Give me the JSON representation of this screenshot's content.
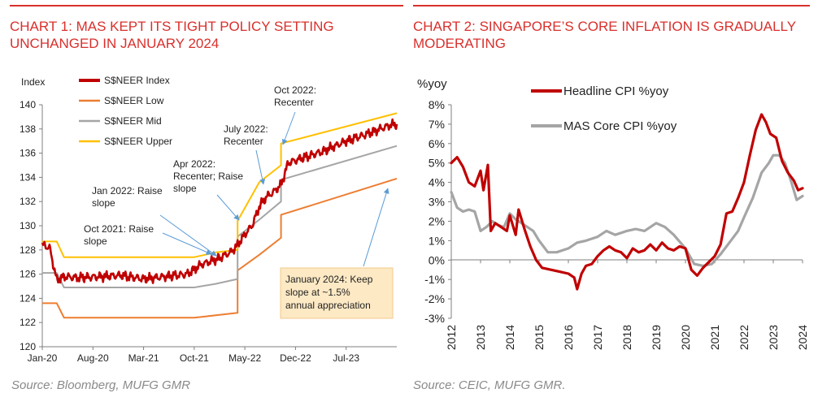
{
  "chart1": {
    "title_line1": "CHART 1: MAS KEPT ITS TIGHT POLICY SETTING",
    "title_line2": "UNCHANGED IN JANUARY 2024",
    "source": "Source: Bloomberg, MUFG GMR",
    "colors": {
      "index": "#c00000",
      "low": "#ed7d31",
      "mid": "#a5a5a5",
      "upper": "#ffc000",
      "arrow": "#5b9bd5",
      "box": "#fde9c4"
    },
    "annotations": [
      {
        "lines": [
          "Oct 2021: Raise",
          "slope"
        ]
      },
      {
        "lines": [
          "Jan 2022: Raise",
          "slope"
        ]
      },
      {
        "lines": [
          "Apr 2022:",
          "Recenter; Raise",
          "slope"
        ]
      },
      {
        "lines": [
          "July 2022:",
          "Recenter"
        ]
      },
      {
        "lines": [
          "Oct 2022:",
          "Recenter"
        ]
      }
    ],
    "box_lines": [
      "January 2024: Keep",
      "slope at ~1.5%",
      "annual appreciation"
    ]
  },
  "chart2": {
    "title_line1": "CHART 2: SINGAPORE’S CORE INFLATION IS GRADUALLY",
    "title_line2": "MODERATING",
    "source": "Source: CEIC, MUFG GMR.",
    "colors": {
      "headline": "#c00000",
      "core": "#a5a5a5"
    }
  },
  "chart_data": [
    {
      "type": "line",
      "title": "CHART 1: MAS KEPT ITS TIGHT POLICY SETTING UNCHANGED IN JANUARY 2024",
      "ylabel": "Index",
      "ylim": [
        120,
        140
      ],
      "yticks": [
        "120",
        "122",
        "124",
        "126",
        "128",
        "130",
        "132",
        "134",
        "136",
        "138",
        "140"
      ],
      "xlim": [
        "2020-01",
        "2024-02"
      ],
      "xticks": [
        "Jan-20",
        "Aug-20",
        "Mar-21",
        "Oct-21",
        "May-22",
        "Dec-22",
        "Jul-23"
      ],
      "grid": false,
      "legend_position": "top-left",
      "series": [
        {
          "name": "S$NEER Index",
          "x": [
            "2020-01",
            "2020-02",
            "2020-03",
            "2020-04",
            "2020-06",
            "2020-09",
            "2020-12",
            "2021-03",
            "2021-06",
            "2021-09",
            "2021-11",
            "2022-01",
            "2022-03",
            "2022-04",
            "2022-05",
            "2022-06",
            "2022-07",
            "2022-08",
            "2022-09",
            "2022-10",
            "2022-11",
            "2023-01",
            "2023-04",
            "2023-07",
            "2023-10",
            "2024-01",
            "2024-02"
          ],
          "values": [
            128.4,
            128.2,
            125.5,
            125.8,
            125.7,
            125.8,
            125.9,
            125.6,
            125.8,
            126.0,
            126.8,
            127.2,
            127.8,
            128.4,
            129.3,
            130.0,
            131.6,
            132.4,
            132.8,
            133.4,
            135.2,
            135.6,
            136.2,
            137.0,
            137.6,
            138.3,
            138.4
          ]
        },
        {
          "name": "S$NEER Low",
          "x": [
            "2020-01",
            "2020-03",
            "2020-04",
            "2021-10",
            "2022-01",
            "2022-04",
            "2022-04",
            "2022-07",
            "2022-10",
            "2022-10",
            "2024-02"
          ],
          "values": [
            123.6,
            123.6,
            122.4,
            122.4,
            122.6,
            122.8,
            126.3,
            127.6,
            129.0,
            130.9,
            133.9
          ]
        },
        {
          "name": "S$NEER Mid",
          "x": [
            "2020-01",
            "2020-03",
            "2020-04",
            "2021-10",
            "2022-01",
            "2022-04",
            "2022-04",
            "2022-07",
            "2022-10",
            "2022-10",
            "2024-02"
          ],
          "values": [
            126.1,
            126.1,
            124.9,
            124.9,
            125.2,
            125.6,
            129.1,
            130.5,
            132.0,
            133.8,
            136.6
          ]
        },
        {
          "name": "S$NEER Upper",
          "x": [
            "2020-01",
            "2020-03",
            "2020-04",
            "2021-10",
            "2022-01",
            "2022-04",
            "2022-04",
            "2022-07",
            "2022-10",
            "2022-10",
            "2024-02"
          ],
          "values": [
            128.7,
            128.7,
            127.4,
            127.4,
            127.8,
            128.0,
            130.4,
            133.6,
            135.0,
            136.8,
            139.3
          ]
        }
      ]
    },
    {
      "type": "line",
      "title": "CHART 2: SINGAPORE’S CORE INFLATION IS GRADUALLY MODERATING",
      "ylabel": "%yoy",
      "ylim": [
        -3,
        8
      ],
      "yticks": [
        "-3%",
        "-2%",
        "-1%",
        "0%",
        "1%",
        "2%",
        "3%",
        "4%",
        "5%",
        "6%",
        "7%",
        "8%"
      ],
      "xlim": [
        2012,
        2024
      ],
      "xticks": [
        "2012",
        "2013",
        "2014",
        "2015",
        "2016",
        "2017",
        "2018",
        "2019",
        "2020",
        "2021",
        "2022",
        "2023",
        "2024"
      ],
      "grid": false,
      "legend_position": "top-left",
      "series": [
        {
          "name": "Headline CPI %yoy",
          "x": [
            2012.0,
            2012.2,
            2012.4,
            2012.6,
            2012.8,
            2013.0,
            2013.1,
            2013.25,
            2013.35,
            2013.5,
            2013.7,
            2013.9,
            2014.0,
            2014.2,
            2014.3,
            2014.5,
            2014.7,
            2014.9,
            2015.1,
            2015.4,
            2015.7,
            2016.0,
            2016.2,
            2016.3,
            2016.45,
            2016.6,
            2016.8,
            2017.0,
            2017.2,
            2017.4,
            2017.6,
            2017.8,
            2018.0,
            2018.2,
            2018.4,
            2018.6,
            2018.8,
            2019.0,
            2019.2,
            2019.4,
            2019.6,
            2019.8,
            2020.0,
            2020.2,
            2020.4,
            2020.6,
            2020.8,
            2021.0,
            2021.2,
            2021.4,
            2021.6,
            2021.8,
            2022.0,
            2022.2,
            2022.4,
            2022.6,
            2022.75,
            2022.9,
            2023.1,
            2023.3,
            2023.5,
            2023.7,
            2023.85,
            2024.0
          ],
          "values": [
            5.0,
            5.3,
            4.8,
            4.0,
            3.8,
            4.6,
            3.6,
            4.9,
            1.5,
            1.9,
            1.7,
            1.5,
            2.3,
            1.3,
            2.6,
            1.6,
            0.7,
            0.0,
            -0.4,
            -0.5,
            -0.6,
            -0.7,
            -0.9,
            -1.5,
            -0.7,
            -0.3,
            -0.2,
            0.2,
            0.5,
            0.7,
            0.5,
            0.4,
            0.1,
            0.6,
            0.4,
            0.5,
            0.8,
            0.5,
            0.9,
            0.6,
            0.5,
            0.7,
            0.6,
            -0.5,
            -0.8,
            -0.4,
            -0.1,
            0.2,
            0.8,
            2.4,
            2.5,
            3.2,
            4.0,
            5.4,
            6.7,
            7.5,
            7.1,
            6.5,
            6.3,
            5.1,
            4.5,
            4.1,
            3.6,
            3.7
          ]
        },
        {
          "name": "MAS Core CPI %yoy",
          "x": [
            2012.0,
            2012.2,
            2012.4,
            2012.6,
            2012.8,
            2013.0,
            2013.2,
            2013.4,
            2013.6,
            2013.8,
            2014.0,
            2014.2,
            2014.5,
            2014.8,
            2015.0,
            2015.3,
            2015.6,
            2016.0,
            2016.3,
            2016.6,
            2017.0,
            2017.3,
            2017.6,
            2018.0,
            2018.3,
            2018.6,
            2019.0,
            2019.3,
            2019.6,
            2020.0,
            2020.3,
            2020.6,
            2020.9,
            2021.2,
            2021.5,
            2021.8,
            2022.0,
            2022.3,
            2022.6,
            2022.85,
            2023.0,
            2023.2,
            2023.4,
            2023.6,
            2023.8,
            2024.0
          ],
          "values": [
            3.5,
            2.7,
            2.5,
            2.6,
            2.5,
            1.5,
            1.7,
            2.0,
            1.8,
            1.7,
            2.4,
            2.1,
            1.8,
            1.5,
            1.0,
            0.4,
            0.4,
            0.6,
            0.9,
            1.0,
            1.2,
            1.5,
            1.3,
            1.5,
            1.6,
            1.5,
            1.9,
            1.7,
            1.3,
            0.6,
            -0.2,
            -0.3,
            -0.2,
            0.3,
            0.9,
            1.5,
            2.2,
            3.2,
            4.5,
            5.0,
            5.4,
            5.4,
            5.0,
            4.1,
            3.1,
            3.3
          ]
        }
      ]
    }
  ]
}
